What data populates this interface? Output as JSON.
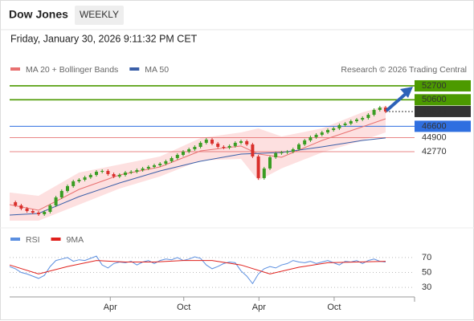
{
  "header": {
    "title": "Dow Jones",
    "badge": "WEEKLY",
    "datetime": "Friday, January 30, 2026 9:11:32 PM CET"
  },
  "chart_data": [
    {
      "type": "candlestick",
      "credit": "Research © 2026 Trading Central",
      "xlim": [
        0,
        70
      ],
      "ylim": [
        31400,
        54150
      ],
      "xticks": [
        {
          "value": 17.4,
          "label": "Apr"
        },
        {
          "value": 30.1,
          "label": "Oct"
        },
        {
          "value": 43.1,
          "label": "Apr"
        },
        {
          "value": 56.1,
          "label": "Oct"
        }
      ],
      "up_color": "#3a9d23",
      "down_color": "#d9302c",
      "x": [
        0,
        1,
        2,
        3,
        4,
        5,
        6,
        7,
        8,
        9,
        10,
        11,
        12,
        13,
        14,
        15,
        16,
        17,
        18,
        19,
        20,
        21,
        22,
        23,
        24,
        25,
        26,
        27,
        28,
        29,
        30,
        31,
        32,
        33,
        34,
        35,
        36,
        37,
        38,
        39,
        40,
        41,
        42,
        43,
        44,
        45,
        46,
        47,
        48,
        49,
        50,
        51,
        52,
        53,
        54,
        55,
        56,
        57,
        58,
        59,
        60,
        61,
        62,
        63,
        64,
        65
      ],
      "values": [
        35150,
        34670,
        34190,
        33820,
        33580,
        33340,
        33700,
        34670,
        35880,
        36850,
        37580,
        38300,
        38540,
        38910,
        39270,
        39750,
        39870,
        39390,
        39030,
        39270,
        39630,
        39750,
        40000,
        40240,
        40480,
        40720,
        40960,
        41330,
        41810,
        42290,
        42780,
        43140,
        43500,
        44110,
        44590,
        43990,
        43500,
        43380,
        43630,
        44110,
        44350,
        43870,
        42050,
        38790,
        40240,
        41930,
        42540,
        42660,
        42780,
        43140,
        43870,
        44470,
        44960,
        45320,
        45680,
        46040,
        46290,
        46770,
        47010,
        47380,
        47620,
        47860,
        48340,
        49070,
        49430,
        48833
      ],
      "series": [
        {
          "name": "MA 20 + Bollinger Bands",
          "color": "#e87070",
          "band_color": "#fde0e0",
          "x": [
            0,
            5,
            12,
            19,
            26,
            33,
            40,
            43,
            47,
            54,
            61,
            65
          ],
          "values": [
            34790,
            33940,
            37090,
            39270,
            40480,
            42900,
            43630,
            42420,
            41930,
            44470,
            46530,
            47740
          ],
          "upper": [
            36610,
            36120,
            39630,
            40840,
            42050,
            44830,
            45680,
            46290,
            45080,
            46290,
            48710,
            49680
          ],
          "lower": [
            32370,
            32370,
            34790,
            37210,
            39030,
            41450,
            41690,
            38420,
            40240,
            42660,
            44470,
            45680
          ]
        },
        {
          "name": "MA 50",
          "color": "#3b5fa8",
          "x": [
            0,
            5,
            12,
            19,
            26,
            33,
            40,
            47,
            54,
            61,
            65
          ],
          "values": [
            33220,
            33460,
            36000,
            38060,
            39870,
            41330,
            42410,
            42660,
            43500,
            44470,
            44840
          ]
        }
      ],
      "levels": [
        {
          "value": 52700,
          "color": "#4c9a00",
          "style": "box"
        },
        {
          "value": 50600,
          "color": "#4c9a00",
          "style": "box"
        },
        {
          "value": 48833,
          "color": "#333333",
          "style": "current"
        },
        {
          "value": 46600,
          "color": "#2f6fe0",
          "style": "box"
        },
        {
          "value": 44900,
          "color": "#e05555",
          "style": "text"
        },
        {
          "value": 42770,
          "color": "#e05555",
          "style": "text"
        }
      ]
    },
    {
      "type": "line",
      "xlim": [
        0,
        70
      ],
      "ylim": [
        15,
        85
      ],
      "yticks": [
        70,
        50,
        30
      ],
      "series": [
        {
          "name": "RSI",
          "color": "#5b8fe0",
          "x": [
            0,
            1,
            2,
            3,
            4,
            5,
            6,
            7,
            8,
            9,
            10,
            11,
            12,
            13,
            14,
            15,
            16,
            17,
            18,
            19,
            20,
            21,
            22,
            23,
            24,
            25,
            26,
            27,
            28,
            29,
            30,
            31,
            32,
            33,
            34,
            35,
            36,
            37,
            38,
            39,
            40,
            41,
            42,
            43,
            44,
            45,
            46,
            47,
            48,
            49,
            50,
            51,
            52,
            53,
            54,
            55,
            56,
            57,
            58,
            59,
            60,
            61,
            62,
            63,
            64,
            65
          ],
          "values": [
            58,
            55,
            50,
            48,
            45,
            42,
            46,
            58,
            66,
            68,
            70,
            65,
            67,
            66,
            69,
            72,
            60,
            56,
            62,
            64,
            63,
            65,
            60,
            64,
            66,
            62,
            66,
            68,
            67,
            70,
            66,
            68,
            71,
            69,
            60,
            55,
            58,
            62,
            64,
            63,
            52,
            45,
            35,
            48,
            55,
            58,
            56,
            60,
            62,
            66,
            64,
            63,
            65,
            62,
            64,
            66,
            63,
            60,
            65,
            64,
            66,
            62,
            66,
            68,
            65,
            64
          ]
        },
        {
          "name": "9MA",
          "color": "#e0201c",
          "x": [
            0,
            5,
            10,
            15,
            20,
            25,
            30,
            35,
            40,
            45,
            50,
            55,
            60,
            65
          ],
          "values": [
            60,
            48,
            58,
            66,
            64,
            64,
            66,
            66,
            60,
            48,
            57,
            63,
            64,
            65
          ]
        }
      ]
    }
  ]
}
